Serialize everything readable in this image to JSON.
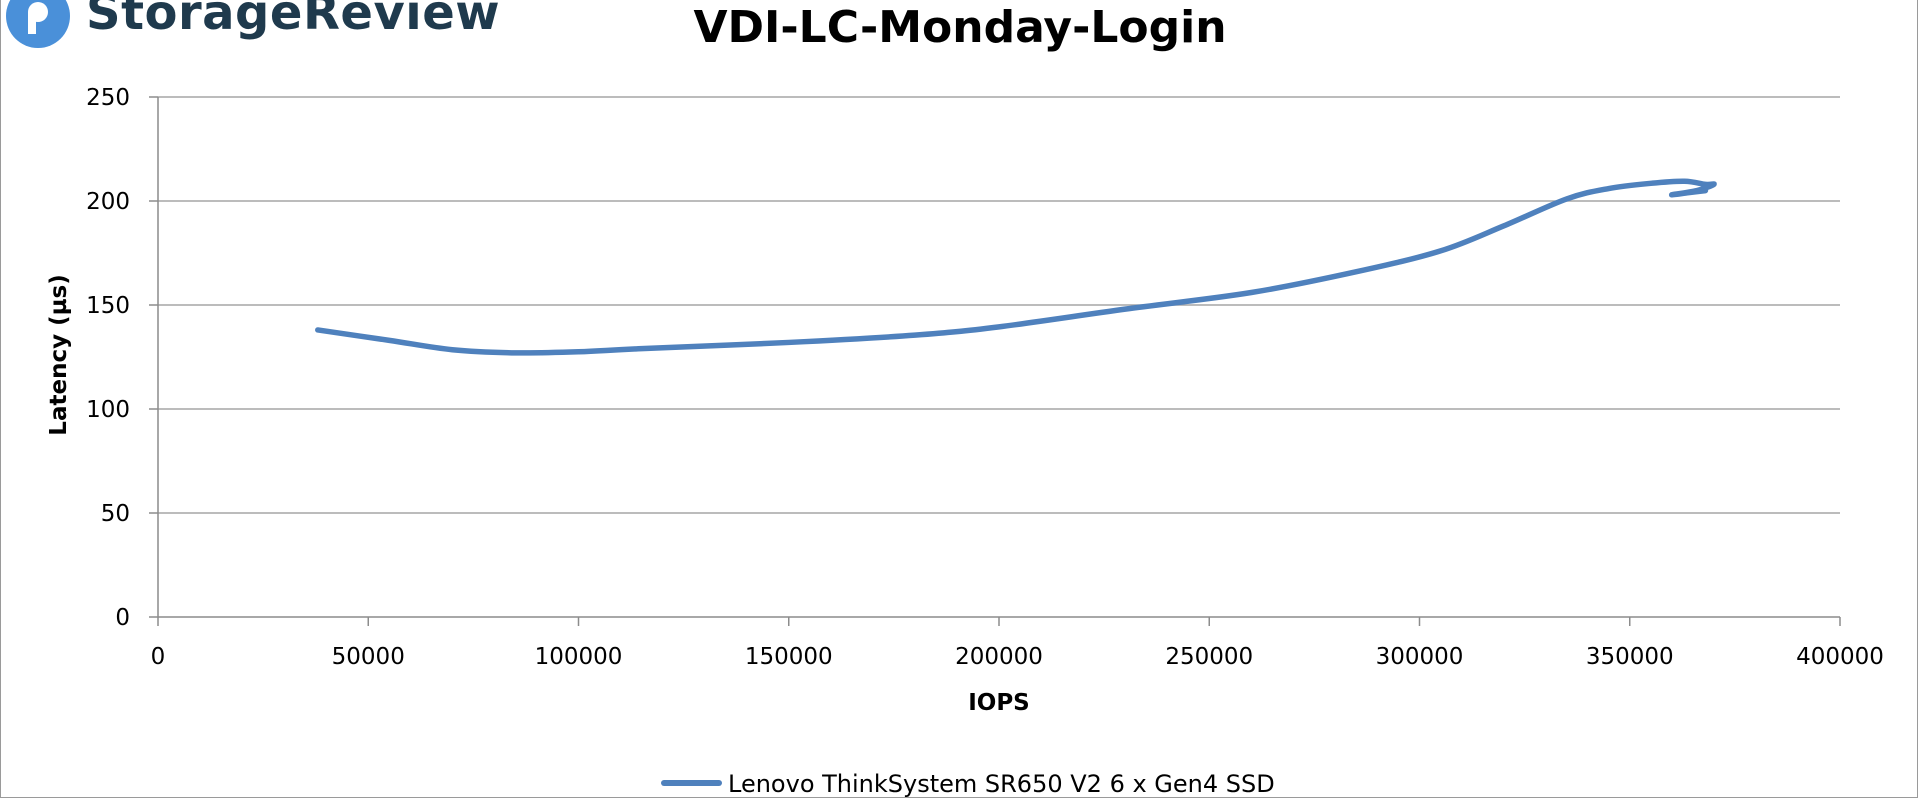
{
  "brand": {
    "name": "StorageReview",
    "accent": "#4a90d9",
    "text_color": "#1f3a4d"
  },
  "chart_data": {
    "type": "line",
    "title": "VDI-LC-Monday-Login",
    "xlabel": "IOPS",
    "ylabel": "Latency (µs)",
    "xlim": [
      0,
      400000
    ],
    "ylim": [
      0,
      250
    ],
    "xticks": [
      0,
      50000,
      100000,
      150000,
      200000,
      250000,
      300000,
      350000,
      400000
    ],
    "yticks": [
      0,
      50,
      100,
      150,
      200,
      250
    ],
    "grid": "horizontal",
    "legend": "bottom",
    "series": [
      {
        "name": "Lenovo ThinkSystem SR650 V2 6 x Gen4 SSD",
        "color": "#4f81bd",
        "points": [
          [
            38000,
            138
          ],
          [
            55000,
            133
          ],
          [
            70000,
            128.5
          ],
          [
            85000,
            127
          ],
          [
            100000,
            127.5
          ],
          [
            115000,
            129
          ],
          [
            150000,
            132
          ],
          [
            180000,
            135.5
          ],
          [
            200000,
            139.5
          ],
          [
            230000,
            148
          ],
          [
            260000,
            156
          ],
          [
            285000,
            166
          ],
          [
            305000,
            176
          ],
          [
            320000,
            188
          ],
          [
            335000,
            201
          ],
          [
            345000,
            206
          ],
          [
            355000,
            208.5
          ],
          [
            363000,
            209.5
          ],
          [
            368000,
            208
          ],
          [
            370000,
            208
          ],
          [
            366000,
            205
          ],
          [
            360000,
            203
          ],
          [
            364000,
            204
          ],
          [
            368000,
            205
          ]
        ]
      }
    ]
  }
}
